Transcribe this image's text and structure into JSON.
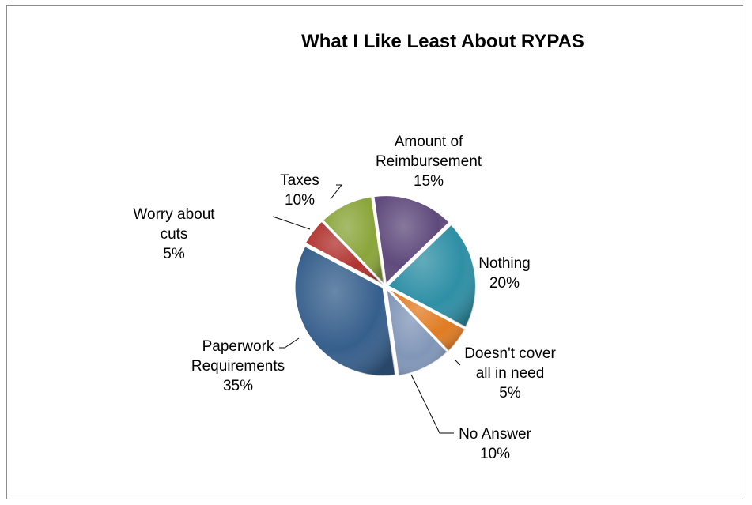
{
  "chart_data": {
    "type": "pie",
    "title": "What I Like Least About RYPAS",
    "slices": [
      {
        "label_lines": [
          "Amount of",
          "Reimbursement"
        ],
        "pct_text": "15%",
        "value": 15,
        "color": "#5f4a7c"
      },
      {
        "label_lines": [
          "Nothing"
        ],
        "pct_text": "20%",
        "value": 20,
        "color": "#2e8fa5"
      },
      {
        "label_lines": [
          "Doesn't cover",
          "all in need"
        ],
        "pct_text": "5%",
        "value": 5,
        "color": "#e07b22"
      },
      {
        "label_lines": [
          "No Answer"
        ],
        "pct_text": "10%",
        "value": 10,
        "color": "#8196b8"
      },
      {
        "label_lines": [
          "Paperwork",
          "Requirements"
        ],
        "pct_text": "35%",
        "value": 35,
        "color": "#365f8c"
      },
      {
        "label_lines": [
          "Worry about",
          "cuts"
        ],
        "pct_text": "5%",
        "value": 5,
        "color": "#b0322e"
      },
      {
        "label_lines": [
          "Taxes"
        ],
        "pct_text": "10%",
        "value": 10,
        "color": "#8aa53a"
      }
    ],
    "legend": "none"
  }
}
